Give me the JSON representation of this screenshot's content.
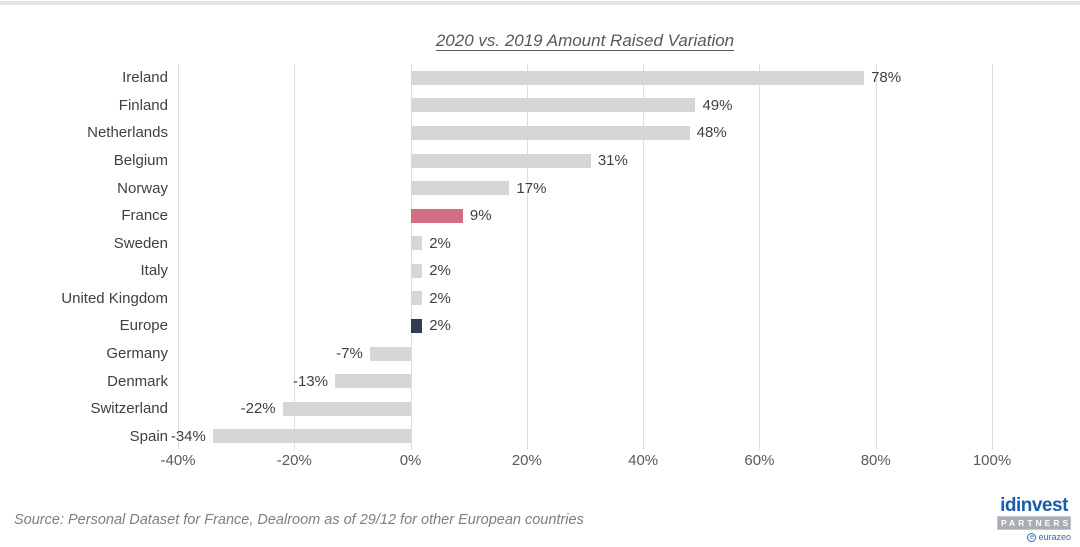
{
  "page": {
    "source_note": "Source: Personal Dataset for France, Dealroom as of 29/12 for other European countries"
  },
  "chart_data": {
    "type": "bar",
    "orientation": "horizontal",
    "title": "2020 vs. 2019 Amount Raised Variation",
    "categories": [
      "Ireland",
      "Finland",
      "Netherlands",
      "Belgium",
      "Norway",
      "France",
      "Sweden",
      "Italy",
      "United Kingdom",
      "Europe",
      "Germany",
      "Denmark",
      "Switzerland",
      "Spain"
    ],
    "values": [
      78,
      49,
      48,
      31,
      17,
      9,
      2,
      2,
      2,
      2,
      -7,
      -13,
      -22,
      -34
    ],
    "value_labels": [
      "78%",
      "49%",
      "48%",
      "31%",
      "17%",
      "9%",
      "2%",
      "2%",
      "2%",
      "2%",
      "-7%",
      "-13%",
      "-22%",
      "-34%"
    ],
    "x_ticks": [
      "-40%",
      "-20%",
      "0%",
      "20%",
      "40%",
      "60%",
      "80%",
      "100%"
    ],
    "xlim": [
      -40,
      100
    ],
    "grid": "vertical",
    "legend": "none",
    "bar_colors": {
      "default": "#d6d6d6",
      "France": "#d46e85",
      "Europe": "#303c52"
    }
  },
  "logo": {
    "brand": "idinvest",
    "sub_brand": "PARTNERS",
    "parent_brand": "eurazeo"
  }
}
